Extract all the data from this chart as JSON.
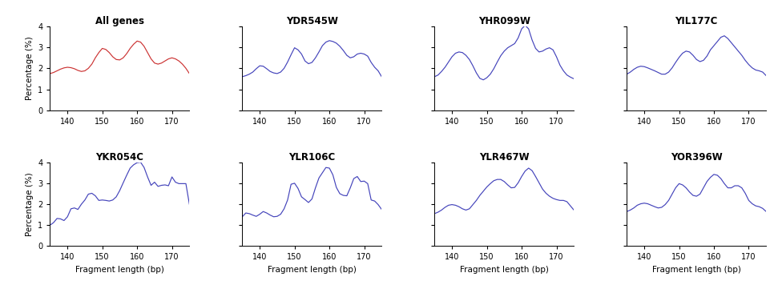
{
  "titles": [
    "All genes",
    "YDR545W",
    "YHR099W",
    "YIL177C",
    "YKR054C",
    "YLR106C",
    "YLR467W",
    "YOR396W"
  ],
  "xlabel": "Fragment length (bp)",
  "ylabel": "Percentage (%)",
  "xlim": [
    135,
    175
  ],
  "ylim": [
    0,
    4
  ],
  "xticks": [
    140,
    150,
    160,
    170
  ],
  "yticks": [
    0,
    1,
    2,
    3,
    4
  ],
  "line_color_row0col0": "#cc3333",
  "line_color_others": "#4444bb",
  "curves": {
    "All genes": {
      "x": [
        135,
        136,
        137,
        138,
        139,
        140,
        141,
        142,
        143,
        144,
        145,
        146,
        147,
        148,
        149,
        150,
        151,
        152,
        153,
        154,
        155,
        156,
        157,
        158,
        159,
        160,
        161,
        162,
        163,
        164,
        165,
        166,
        167,
        168,
        169,
        170,
        171,
        172,
        173,
        174,
        175
      ],
      "y": [
        1.75,
        1.8,
        1.88,
        1.96,
        2.02,
        2.05,
        2.03,
        1.98,
        1.9,
        1.85,
        1.88,
        2.0,
        2.2,
        2.5,
        2.75,
        2.95,
        2.9,
        2.75,
        2.55,
        2.42,
        2.4,
        2.5,
        2.7,
        2.95,
        3.15,
        3.3,
        3.25,
        3.05,
        2.75,
        2.45,
        2.25,
        2.2,
        2.25,
        2.35,
        2.45,
        2.5,
        2.45,
        2.35,
        2.2,
        2.0,
        1.75
      ]
    },
    "YDR545W": {
      "x": [
        135,
        136,
        137,
        138,
        139,
        140,
        141,
        142,
        143,
        144,
        145,
        146,
        147,
        148,
        149,
        150,
        151,
        152,
        153,
        154,
        155,
        156,
        157,
        158,
        159,
        160,
        161,
        162,
        163,
        164,
        165,
        166,
        167,
        168,
        169,
        170,
        171,
        172,
        173,
        174,
        175
      ],
      "y": [
        1.6,
        1.65,
        1.72,
        1.82,
        1.98,
        2.12,
        2.1,
        1.98,
        1.85,
        1.78,
        1.75,
        1.82,
        2.0,
        2.3,
        2.65,
        2.98,
        2.88,
        2.68,
        2.35,
        2.22,
        2.28,
        2.5,
        2.78,
        3.08,
        3.25,
        3.32,
        3.28,
        3.2,
        3.05,
        2.85,
        2.62,
        2.5,
        2.55,
        2.68,
        2.72,
        2.68,
        2.58,
        2.28,
        2.05,
        1.88,
        1.6
      ]
    },
    "YHR099W": {
      "x": [
        135,
        136,
        137,
        138,
        139,
        140,
        141,
        142,
        143,
        144,
        145,
        146,
        147,
        148,
        149,
        150,
        151,
        152,
        153,
        154,
        155,
        156,
        157,
        158,
        159,
        160,
        161,
        162,
        163,
        164,
        165,
        166,
        167,
        168,
        169,
        170,
        171,
        172,
        173,
        174,
        175
      ],
      "y": [
        1.6,
        1.68,
        1.85,
        2.05,
        2.3,
        2.55,
        2.72,
        2.78,
        2.75,
        2.62,
        2.42,
        2.12,
        1.78,
        1.52,
        1.45,
        1.55,
        1.72,
        1.98,
        2.3,
        2.6,
        2.82,
        2.98,
        3.08,
        3.18,
        3.45,
        3.88,
        4.05,
        3.88,
        3.35,
        2.95,
        2.78,
        2.82,
        2.92,
        2.98,
        2.88,
        2.55,
        2.15,
        1.88,
        1.68,
        1.58,
        1.5
      ]
    },
    "YIL177C": {
      "x": [
        135,
        136,
        137,
        138,
        139,
        140,
        141,
        142,
        143,
        144,
        145,
        146,
        147,
        148,
        149,
        150,
        151,
        152,
        153,
        154,
        155,
        156,
        157,
        158,
        159,
        160,
        161,
        162,
        163,
        164,
        165,
        166,
        167,
        168,
        169,
        170,
        171,
        172,
        173,
        174,
        175
      ],
      "y": [
        1.72,
        1.82,
        1.95,
        2.05,
        2.1,
        2.08,
        2.02,
        1.95,
        1.88,
        1.8,
        1.72,
        1.72,
        1.82,
        2.02,
        2.28,
        2.52,
        2.72,
        2.82,
        2.78,
        2.62,
        2.42,
        2.32,
        2.38,
        2.58,
        2.88,
        3.08,
        3.28,
        3.48,
        3.55,
        3.42,
        3.22,
        3.02,
        2.82,
        2.62,
        2.38,
        2.18,
        2.02,
        1.92,
        1.88,
        1.82,
        1.65
      ]
    },
    "YKR054C": {
      "x": [
        135,
        136,
        137,
        138,
        139,
        140,
        141,
        142,
        143,
        144,
        145,
        146,
        147,
        148,
        149,
        150,
        151,
        152,
        153,
        154,
        155,
        156,
        157,
        158,
        159,
        160,
        161,
        162,
        163,
        164,
        165,
        166,
        167,
        168,
        169,
        170,
        171,
        172,
        173,
        174,
        175
      ],
      "y": [
        1.0,
        1.12,
        1.32,
        1.3,
        1.22,
        1.4,
        1.78,
        1.82,
        1.75,
        2.0,
        2.2,
        2.48,
        2.52,
        2.4,
        2.18,
        2.2,
        2.18,
        2.15,
        2.2,
        2.35,
        2.65,
        3.02,
        3.38,
        3.72,
        3.88,
        3.98,
        4.0,
        3.75,
        3.3,
        2.9,
        3.05,
        2.85,
        2.9,
        2.92,
        2.88,
        3.3,
        3.05,
        2.98,
        2.98,
        2.98,
        2.0
      ]
    },
    "YLR106C": {
      "x": [
        135,
        136,
        137,
        138,
        139,
        140,
        141,
        142,
        143,
        144,
        145,
        146,
        147,
        148,
        149,
        150,
        151,
        152,
        153,
        154,
        155,
        156,
        157,
        158,
        159,
        160,
        161,
        162,
        163,
        164,
        165,
        166,
        167,
        168,
        169,
        170,
        171,
        172,
        173,
        174,
        175
      ],
      "y": [
        1.4,
        1.58,
        1.55,
        1.48,
        1.42,
        1.52,
        1.65,
        1.58,
        1.48,
        1.4,
        1.42,
        1.52,
        1.78,
        2.2,
        2.95,
        3.0,
        2.75,
        2.35,
        2.22,
        2.08,
        2.25,
        2.78,
        3.25,
        3.5,
        3.75,
        3.72,
        3.4,
        2.8,
        2.5,
        2.42,
        2.4,
        2.78,
        3.22,
        3.32,
        3.08,
        3.1,
        2.98,
        2.2,
        2.15,
        1.98,
        1.75
      ]
    },
    "YLR467W": {
      "x": [
        135,
        136,
        137,
        138,
        139,
        140,
        141,
        142,
        143,
        144,
        145,
        146,
        147,
        148,
        149,
        150,
        151,
        152,
        153,
        154,
        155,
        156,
        157,
        158,
        159,
        160,
        161,
        162,
        163,
        164,
        165,
        166,
        167,
        168,
        169,
        170,
        171,
        172,
        173,
        174,
        175
      ],
      "y": [
        1.55,
        1.62,
        1.72,
        1.85,
        1.95,
        1.98,
        1.95,
        1.88,
        1.78,
        1.72,
        1.78,
        1.98,
        2.18,
        2.42,
        2.62,
        2.82,
        2.98,
        3.12,
        3.18,
        3.18,
        3.08,
        2.92,
        2.78,
        2.8,
        3.02,
        3.32,
        3.58,
        3.72,
        3.6,
        3.32,
        3.02,
        2.72,
        2.52,
        2.38,
        2.28,
        2.22,
        2.18,
        2.18,
        2.12,
        1.92,
        1.72
      ]
    },
    "YOR396W": {
      "x": [
        135,
        136,
        137,
        138,
        139,
        140,
        141,
        142,
        143,
        144,
        145,
        146,
        147,
        148,
        149,
        150,
        151,
        152,
        153,
        154,
        155,
        156,
        157,
        158,
        159,
        160,
        161,
        162,
        163,
        164,
        165,
        166,
        167,
        168,
        169,
        170,
        171,
        172,
        173,
        174,
        175
      ],
      "y": [
        1.65,
        1.72,
        1.82,
        1.95,
        2.02,
        2.05,
        2.02,
        1.95,
        1.88,
        1.82,
        1.85,
        1.98,
        2.18,
        2.48,
        2.78,
        2.98,
        2.92,
        2.78,
        2.58,
        2.42,
        2.38,
        2.48,
        2.78,
        3.08,
        3.28,
        3.42,
        3.38,
        3.22,
        2.98,
        2.78,
        2.78,
        2.88,
        2.88,
        2.78,
        2.52,
        2.18,
        2.02,
        1.92,
        1.88,
        1.8,
        1.65
      ]
    }
  }
}
